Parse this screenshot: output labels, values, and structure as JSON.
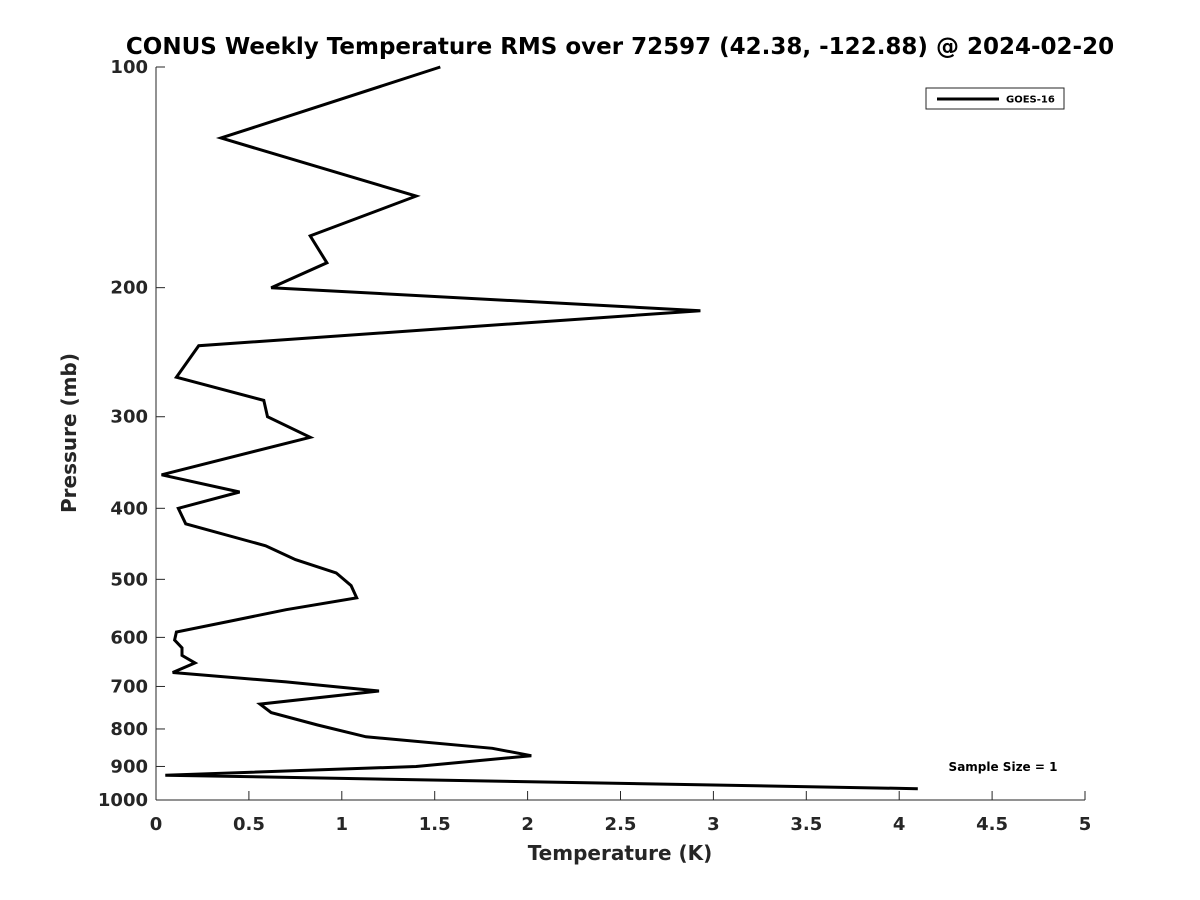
{
  "chart_data": {
    "type": "line",
    "title": "CONUS Weekly Temperature RMS over 72597 (42.38, -122.88) @ 2024-02-20",
    "xlabel": "Temperature (K)",
    "ylabel": "Pressure (mb)",
    "xlim": [
      0,
      5
    ],
    "ylim": [
      1000,
      100
    ],
    "y_scale": "log",
    "y_reversed": true,
    "grid": false,
    "xticks": [
      0,
      0.5,
      1,
      1.5,
      2,
      2.5,
      3,
      3.5,
      4,
      4.5,
      5
    ],
    "xtick_labels": [
      "0",
      "0.5",
      "1",
      "1.5",
      "2",
      "2.5",
      "3",
      "3.5",
      "4",
      "4.5",
      "5"
    ],
    "yticks": [
      100,
      200,
      300,
      400,
      500,
      600,
      700,
      800,
      900,
      1000
    ],
    "ytick_labels": [
      "100",
      "200",
      "300",
      "400",
      "500",
      "600",
      "700",
      "800",
      "900",
      "1000"
    ],
    "legend": {
      "position": "top-right",
      "entries": [
        "GOES-16"
      ]
    },
    "annotation": "Sample Size = 1",
    "series": [
      {
        "name": "GOES-16",
        "color": "#000000",
        "points": [
          [
            1.53,
            100
          ],
          [
            0.35,
            125
          ],
          [
            1.4,
            150
          ],
          [
            0.83,
            170
          ],
          [
            0.92,
            185
          ],
          [
            0.62,
            200
          ],
          [
            2.93,
            215
          ],
          [
            0.23,
            240
          ],
          [
            0.11,
            265
          ],
          [
            0.58,
            285
          ],
          [
            0.6,
            300
          ],
          [
            0.83,
            320
          ],
          [
            0.03,
            360
          ],
          [
            0.45,
            380
          ],
          [
            0.12,
            400
          ],
          [
            0.16,
            420
          ],
          [
            0.59,
            450
          ],
          [
            0.75,
            470
          ],
          [
            0.97,
            490
          ],
          [
            1.05,
            510
          ],
          [
            1.08,
            530
          ],
          [
            0.7,
            550
          ],
          [
            0.4,
            570
          ],
          [
            0.11,
            590
          ],
          [
            0.1,
            605
          ],
          [
            0.14,
            620
          ],
          [
            0.14,
            635
          ],
          [
            0.21,
            650
          ],
          [
            0.09,
            670
          ],
          [
            0.7,
            690
          ],
          [
            1.2,
            710
          ],
          [
            0.56,
            740
          ],
          [
            0.62,
            760
          ],
          [
            0.87,
            790
          ],
          [
            1.13,
            820
          ],
          [
            1.81,
            850
          ],
          [
            2.02,
            870
          ],
          [
            1.4,
            900
          ],
          [
            0.05,
            925
          ],
          [
            4.1,
            965
          ]
        ]
      }
    ]
  }
}
